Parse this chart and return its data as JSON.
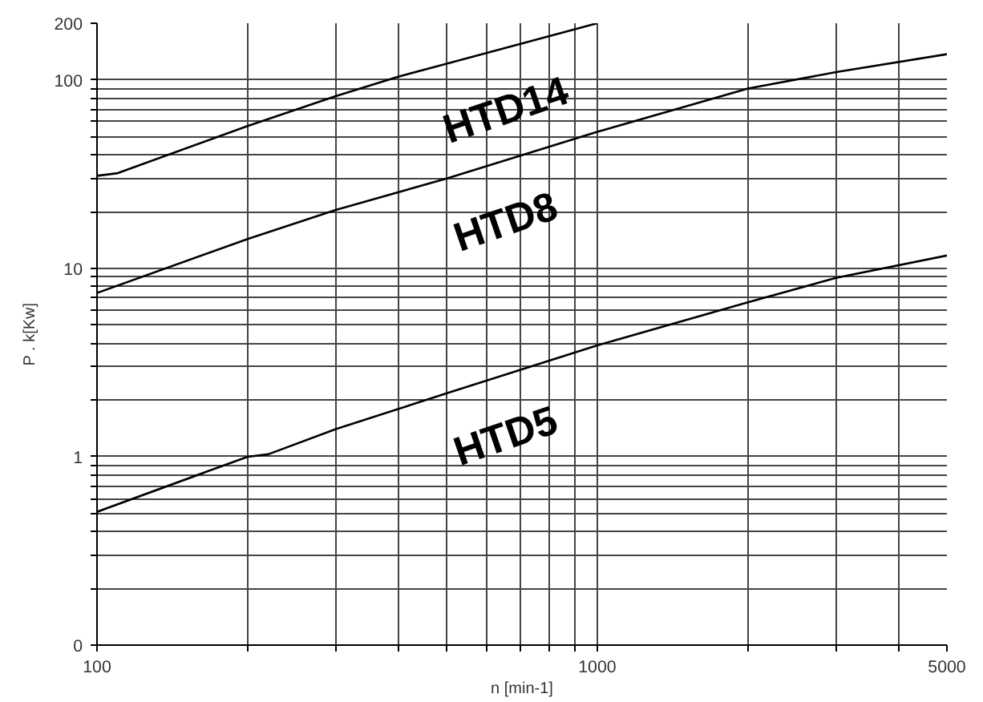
{
  "chart_data": {
    "type": "line",
    "xlabel": "n [min-1]",
    "ylabel": "P . k[Kw]",
    "log": "xy",
    "grid": true,
    "marker": "none",
    "line_style": "solid",
    "xlim": [
      100,
      5000
    ],
    "ylim": [
      0.1,
      200
    ],
    "xticks": [
      100,
      {
        "value": 200,
        "label": null
      },
      {
        "value": 300,
        "label": null
      },
      {
        "value": 400,
        "label": null
      },
      {
        "value": 500,
        "label": null
      },
      {
        "value": 600,
        "label": null
      },
      {
        "value": 700,
        "label": null
      },
      {
        "value": 800,
        "label": null
      },
      {
        "value": 900,
        "label": null
      },
      1000,
      {
        "value": 2000,
        "label": null
      },
      {
        "value": 3000,
        "label": null
      },
      {
        "value": 4000,
        "label": null
      },
      5000
    ],
    "yticks": [
      {
        "value": 0.1,
        "label": "0"
      },
      {
        "value": 0.2,
        "label": null
      },
      {
        "value": 0.3,
        "label": null
      },
      {
        "value": 0.4,
        "label": null
      },
      {
        "value": 0.5,
        "label": null
      },
      {
        "value": 0.6,
        "label": null
      },
      {
        "value": 0.7,
        "label": null
      },
      {
        "value": 0.8,
        "label": null
      },
      {
        "value": 0.9,
        "label": null
      },
      1,
      {
        "value": 2,
        "label": null
      },
      {
        "value": 3,
        "label": null
      },
      {
        "value": 4,
        "label": null
      },
      {
        "value": 5,
        "label": null
      },
      {
        "value": 6,
        "label": null
      },
      {
        "value": 7,
        "label": null
      },
      {
        "value": 8,
        "label": null
      },
      {
        "value": 9,
        "label": null
      },
      10,
      {
        "value": 20,
        "label": null
      },
      {
        "value": 30,
        "label": null
      },
      {
        "value": 40,
        "label": null
      },
      {
        "value": 50,
        "label": null
      },
      {
        "value": 60,
        "label": null
      },
      {
        "value": 70,
        "label": null
      },
      {
        "value": 80,
        "label": null
      },
      {
        "value": 90,
        "label": null
      },
      100,
      200
    ],
    "series": [
      {
        "name": "HTD14",
        "color": "#000000",
        "x": [
          100,
          110,
          200,
          300,
          400,
          500,
          1000
        ],
        "values": [
          31,
          32,
          57,
          82,
          104,
          122,
          200
        ]
      },
      {
        "name": "HTD8",
        "color": "#000000",
        "x": [
          100,
          200,
          300,
          500,
          1000,
          2000,
          3000,
          5000
        ],
        "values": [
          7.4,
          14.3,
          20.4,
          30,
          53,
          90,
          110,
          137
        ]
      },
      {
        "name": "HTD5",
        "color": "#000000",
        "x": [
          100,
          200,
          220,
          300,
          500,
          1000,
          2000,
          3000,
          5000
        ],
        "values": [
          0.51,
          1.0,
          1.03,
          1.4,
          2.17,
          3.9,
          6.6,
          8.9,
          11.7
        ]
      }
    ]
  }
}
